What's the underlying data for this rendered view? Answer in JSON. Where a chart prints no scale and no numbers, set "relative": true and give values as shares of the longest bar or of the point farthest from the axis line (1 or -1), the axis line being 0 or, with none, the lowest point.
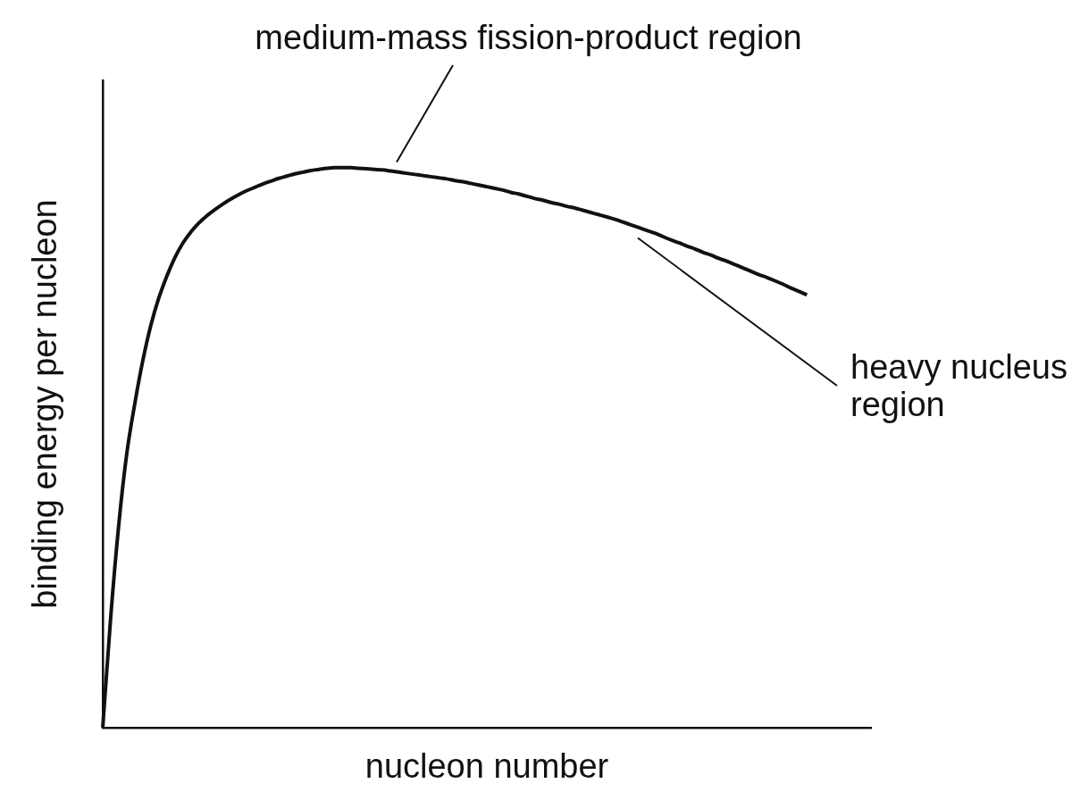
{
  "chart_data": {
    "type": "line",
    "relative": true,
    "xlabel": "nucleon number",
    "ylabel": "binding energy per nucleon",
    "annotations": [
      "medium-mass fission-product region",
      "heavy nucleus region"
    ],
    "categories": [
      null,
      null,
      null,
      null,
      null,
      null,
      null,
      null,
      null,
      null,
      null,
      null,
      null,
      null,
      null,
      null,
      null,
      null,
      null,
      null,
      null,
      null,
      null,
      null,
      null,
      null,
      null,
      null,
      null,
      null,
      null,
      null,
      null,
      null,
      null,
      null,
      null,
      null,
      null,
      null,
      null,
      null,
      null,
      null,
      null,
      null,
      null,
      null,
      null,
      null,
      null,
      null,
      null,
      null,
      null,
      null,
      null,
      null,
      null,
      null,
      null,
      null,
      null,
      null,
      null,
      null,
      null,
      null,
      null,
      null,
      null,
      null,
      null,
      null,
      null,
      null,
      null,
      null,
      null,
      null,
      null,
      null,
      null,
      null,
      null,
      null,
      null,
      null,
      null,
      null,
      null,
      null,
      null,
      null,
      null,
      null,
      null
    ],
    "values": [
      0,
      0.198,
      0.362,
      0.489,
      0.578,
      0.655,
      0.718,
      0.767,
      0.806,
      0.839,
      0.865,
      0.885,
      0.901,
      0.914,
      0.925,
      0.935,
      0.944,
      0.952,
      0.959,
      0.965,
      0.971,
      0.976,
      0.981,
      0.985,
      0.989,
      0.992,
      0.995,
      0.997,
      0.999,
      1,
      1,
      1,
      0.999,
      0.998,
      0.997,
      0.996,
      0.994,
      0.992,
      0.99,
      0.988,
      0.986,
      0.984,
      0.982,
      0.98,
      0.977,
      0.975,
      0.972,
      0.969,
      0.966,
      0.963,
      0.96,
      0.956,
      0.953,
      0.949,
      0.945,
      0.942,
      0.938,
      0.935,
      0.931,
      0.928,
      0.924,
      0.92,
      0.916,
      0.912,
      0.908,
      0.903,
      0.898,
      0.893,
      0.888,
      0.883,
      0.877,
      0.871,
      0.866,
      0.86,
      0.855,
      0.849,
      0.844,
      0.838,
      0.833,
      0.827,
      0.821,
      0.815,
      0.809,
      0.804,
      0.798,
      0.792,
      0.785,
      0.779,
      0.773,
      null,
      null,
      null,
      null,
      null,
      null,
      null,
      null
    ],
    "color": "#111111",
    "marker": "none",
    "tick_labels": false
  }
}
